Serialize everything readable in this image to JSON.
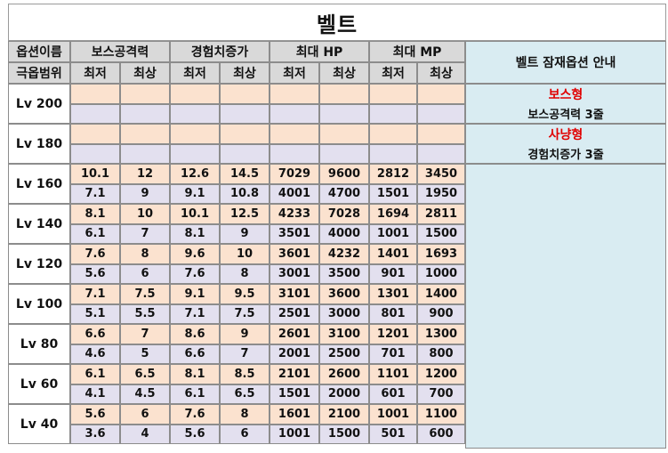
{
  "title": "벨트",
  "header": {
    "option_name": "옵션이름",
    "grade_range": "극옵범위",
    "columns": [
      "보스공격력",
      "경험치증가",
      "최대 HP",
      "최대 MP"
    ],
    "min_label": "최저",
    "max_label": "최상",
    "guide": "벨트 잠재옵션 안내"
  },
  "notes": {
    "boss_type": "보스형",
    "boss_desc": "보스공격력 3줄",
    "hunt_type": "사냥형",
    "hunt_desc": "경험치증가 3줄"
  },
  "levels": [
    {
      "level": "Lv 200",
      "rows": [
        [
          "",
          "",
          "",
          "",
          "",
          "",
          "",
          ""
        ],
        [
          "",
          "",
          "",
          "",
          "",
          "",
          "",
          ""
        ]
      ]
    },
    {
      "level": "Lv 180",
      "rows": [
        [
          "",
          "",
          "",
          "",
          "",
          "",
          "",
          ""
        ],
        [
          "",
          "",
          "",
          "",
          "",
          "",
          "",
          ""
        ]
      ]
    },
    {
      "level": "Lv 160",
      "rows": [
        [
          "10.1",
          "12",
          "12.6",
          "14.5",
          "7029",
          "9600",
          "2812",
          "3450"
        ],
        [
          "7.1",
          "9",
          "9.1",
          "10.8",
          "4001",
          "4700",
          "1501",
          "1950"
        ]
      ]
    },
    {
      "level": "Lv 140",
      "rows": [
        [
          "8.1",
          "10",
          "10.1",
          "12.5",
          "4233",
          "7028",
          "1694",
          "2811"
        ],
        [
          "6.1",
          "7",
          "8.1",
          "9",
          "3501",
          "4000",
          "1001",
          "1500"
        ]
      ]
    },
    {
      "level": "Lv 120",
      "rows": [
        [
          "7.6",
          "8",
          "9.6",
          "10",
          "3601",
          "4232",
          "1401",
          "1693"
        ],
        [
          "5.6",
          "6",
          "7.6",
          "8",
          "3001",
          "3500",
          "901",
          "1000"
        ]
      ]
    },
    {
      "level": "Lv 100",
      "rows": [
        [
          "7.1",
          "7.5",
          "9.1",
          "9.5",
          "3101",
          "3600",
          "1301",
          "1400"
        ],
        [
          "5.1",
          "5.5",
          "7.1",
          "7.5",
          "2501",
          "3000",
          "801",
          "900"
        ]
      ]
    },
    {
      "level": "Lv 80",
      "rows": [
        [
          "6.6",
          "7",
          "8.6",
          "9",
          "2601",
          "3100",
          "1201",
          "1300"
        ],
        [
          "4.6",
          "5",
          "6.6",
          "7",
          "2001",
          "2500",
          "701",
          "800"
        ]
      ]
    },
    {
      "level": "Lv 60",
      "rows": [
        [
          "6.1",
          "6.5",
          "8.1",
          "8.5",
          "2101",
          "2600",
          "1101",
          "1200"
        ],
        [
          "4.1",
          "4.5",
          "6.1",
          "6.5",
          "1501",
          "2000",
          "601",
          "700"
        ]
      ]
    },
    {
      "level": "Lv 40",
      "rows": [
        [
          "5.6",
          "6",
          "7.6",
          "8",
          "1601",
          "2100",
          "1001",
          "1100"
        ],
        [
          "3.6",
          "4",
          "5.6",
          "6",
          "1001",
          "1500",
          "501",
          "600"
        ]
      ]
    }
  ],
  "colors": {
    "header_bg": "#d9d9d9",
    "upper_row_bg": "#fbe2cf",
    "lower_row_bg": "#e3e0ef",
    "guide_bg": "#d9ecf2",
    "type_label": "#e00000"
  }
}
